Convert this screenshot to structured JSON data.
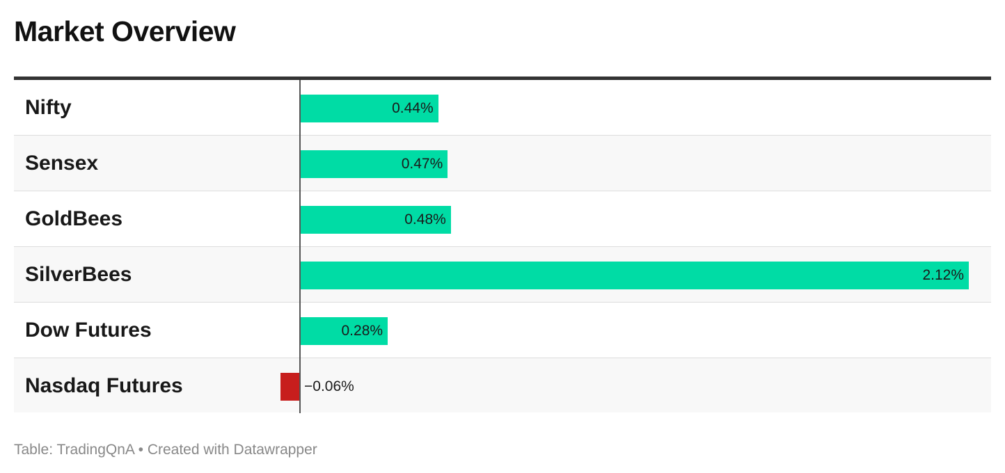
{
  "title": "Market Overview",
  "footer": {
    "source": "Table: TradingQnA",
    "separator": "•",
    "credit": "Created with Datawrapper"
  },
  "colors": {
    "positive": "#00dca5",
    "negative": "#c71e1d"
  },
  "chart_data": {
    "type": "bar",
    "orientation": "horizontal",
    "categories": [
      "Nifty",
      "Sensex",
      "GoldBees",
      "SilverBees",
      "Dow Futures",
      "Nasdaq Futures"
    ],
    "values": [
      0.44,
      0.47,
      0.48,
      2.12,
      0.28,
      -0.06
    ],
    "value_labels": [
      "0.44%",
      "0.47%",
      "0.48%",
      "2.12%",
      "0.28%",
      "−0.06%"
    ],
    "unit": "%",
    "xlim": [
      -0.06,
      2.12
    ]
  }
}
